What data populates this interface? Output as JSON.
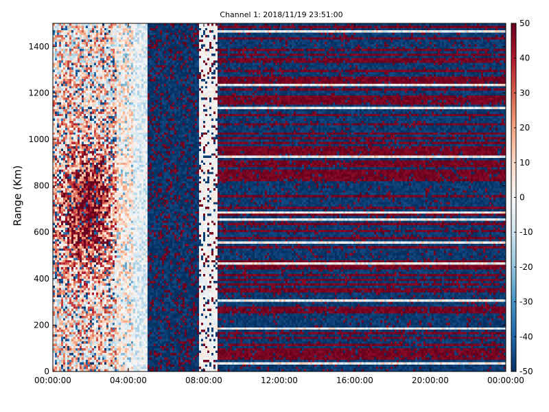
{
  "chart_data": {
    "type": "heatmap",
    "title": "Channel 1: 2018/11/19 23:51:00",
    "xlabel": "",
    "ylabel": "Range (Km)",
    "x_ticks": [
      "00:00:00",
      "04:00:00",
      "08:00:00",
      "12:00:00",
      "16:00:00",
      "20:00:00",
      "00:00:00"
    ],
    "x_range": [
      "00:00:00",
      "24:00:00"
    ],
    "y_ticks": [
      0,
      200,
      400,
      600,
      800,
      1000,
      1200,
      1400
    ],
    "ylim": [
      0,
      1500
    ],
    "colorbar": {
      "ticks": [
        50,
        40,
        30,
        20,
        10,
        0,
        -10,
        -20,
        -30,
        -40,
        -50
      ],
      "range": [
        -50,
        50
      ],
      "colormap": "RdBu_r",
      "colors": [
        "#053061",
        "#2166ac",
        "#4393c3",
        "#92c5de",
        "#d1e5f0",
        "#f7f7f7",
        "#fddbc7",
        "#f4a582",
        "#d6604d",
        "#b2182b",
        "#67001f"
      ]
    },
    "regions": [
      {
        "hours": [
          0.0,
          4.3
        ],
        "description": "mixed positive (red/pink) noise"
      },
      {
        "hours": [
          4.3,
          5.0
        ],
        "description": "near zero (white/light blue)"
      },
      {
        "hours": [
          5.0,
          7.7
        ],
        "description": "mostly strongly negative (dark blue) with scattered red"
      },
      {
        "hours": [
          7.7,
          8.7
        ],
        "description": "near zero (white) band"
      },
      {
        "hours": [
          8.7,
          24.0
        ],
        "description": "horizontal stripes alternating saturated red and dark blue"
      }
    ],
    "grid": false
  }
}
